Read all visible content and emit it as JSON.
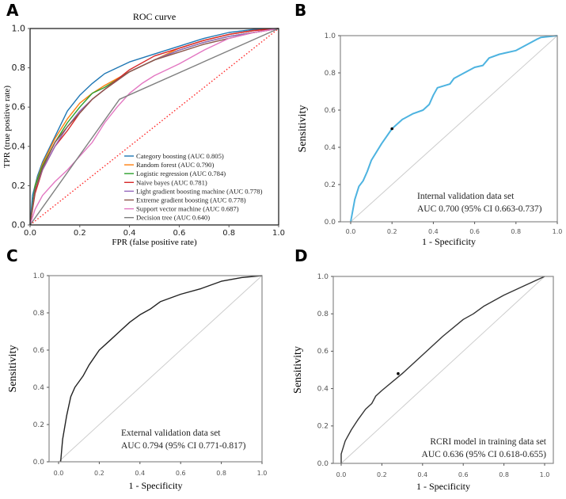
{
  "chart_data": [
    {
      "panel": "A",
      "type": "line",
      "title": "ROC curve",
      "xlabel": "FPR (false positive rate)",
      "ylabel": "TPR (true positive rate)",
      "xlim": [
        0,
        1
      ],
      "ylim": [
        0,
        1
      ],
      "xticks": [
        "0.0",
        "0.2",
        "0.4",
        "0.6",
        "0.8",
        "1.0"
      ],
      "yticks": [
        "0.0",
        "0.2",
        "0.4",
        "0.6",
        "0.8",
        "1.0"
      ],
      "grid": false,
      "legend_position": "bottom-right",
      "reference_line": {
        "style": "dotted",
        "color": "#ff2a2a"
      },
      "series": [
        {
          "name": "Category boosting (AUC 0.805)",
          "color": "#1f77b4",
          "points": [
            [
              0,
              0
            ],
            [
              0.01,
              0.15
            ],
            [
              0.03,
              0.25
            ],
            [
              0.05,
              0.32
            ],
            [
              0.1,
              0.45
            ],
            [
              0.15,
              0.58
            ],
            [
              0.2,
              0.66
            ],
            [
              0.25,
              0.72
            ],
            [
              0.3,
              0.77
            ],
            [
              0.35,
              0.8
            ],
            [
              0.4,
              0.83
            ],
            [
              0.5,
              0.87
            ],
            [
              0.6,
              0.91
            ],
            [
              0.7,
              0.95
            ],
            [
              0.8,
              0.98
            ],
            [
              0.9,
              0.995
            ],
            [
              1,
              1
            ]
          ]
        },
        {
          "name": "Random forest (AUC 0.790)",
          "color": "#ff7f0e",
          "points": [
            [
              0,
              0
            ],
            [
              0.02,
              0.2
            ],
            [
              0.05,
              0.31
            ],
            [
              0.1,
              0.44
            ],
            [
              0.15,
              0.54
            ],
            [
              0.2,
              0.62
            ],
            [
              0.25,
              0.67
            ],
            [
              0.3,
              0.71
            ],
            [
              0.4,
              0.78
            ],
            [
              0.5,
              0.84
            ],
            [
              0.6,
              0.9
            ],
            [
              0.7,
              0.94
            ],
            [
              0.8,
              0.97
            ],
            [
              0.9,
              0.99
            ],
            [
              1,
              1
            ]
          ]
        },
        {
          "name": "Logistic regression (AUC 0.784)",
          "color": "#2ca02c",
          "points": [
            [
              0,
              0
            ],
            [
              0.02,
              0.2
            ],
            [
              0.05,
              0.3
            ],
            [
              0.1,
              0.42
            ],
            [
              0.15,
              0.52
            ],
            [
              0.2,
              0.6
            ],
            [
              0.25,
              0.67
            ],
            [
              0.3,
              0.7
            ],
            [
              0.4,
              0.78
            ],
            [
              0.5,
              0.84
            ],
            [
              0.6,
              0.89
            ],
            [
              0.7,
              0.93
            ],
            [
              0.8,
              0.96
            ],
            [
              0.9,
              0.98
            ],
            [
              1,
              1
            ]
          ]
        },
        {
          "name": "Naive bayes (AUC 0.781)",
          "color": "#d62728",
          "points": [
            [
              0,
              0
            ],
            [
              0.02,
              0.16
            ],
            [
              0.05,
              0.28
            ],
            [
              0.1,
              0.4
            ],
            [
              0.15,
              0.48
            ],
            [
              0.2,
              0.57
            ],
            [
              0.25,
              0.64
            ],
            [
              0.3,
              0.69
            ],
            [
              0.4,
              0.79
            ],
            [
              0.5,
              0.86
            ],
            [
              0.6,
              0.9
            ],
            [
              0.7,
              0.94
            ],
            [
              0.8,
              0.97
            ],
            [
              0.9,
              0.99
            ],
            [
              1,
              1
            ]
          ]
        },
        {
          "name": "Light gradient boosting machine (AUC 0.778)",
          "color": "#9467bd",
          "points": [
            [
              0,
              0
            ],
            [
              0.02,
              0.18
            ],
            [
              0.05,
              0.28
            ],
            [
              0.1,
              0.4
            ],
            [
              0.15,
              0.5
            ],
            [
              0.2,
              0.58
            ],
            [
              0.25,
              0.64
            ],
            [
              0.3,
              0.69
            ],
            [
              0.4,
              0.78
            ],
            [
              0.5,
              0.84
            ],
            [
              0.6,
              0.89
            ],
            [
              0.7,
              0.93
            ],
            [
              0.8,
              0.96
            ],
            [
              0.9,
              0.98
            ],
            [
              1,
              1
            ]
          ]
        },
        {
          "name": "Extreme gradient boosting (AUC 0.778)",
          "color": "#8c564b",
          "points": [
            [
              0,
              0
            ],
            [
              0.02,
              0.18
            ],
            [
              0.05,
              0.29
            ],
            [
              0.1,
              0.42
            ],
            [
              0.15,
              0.5
            ],
            [
              0.2,
              0.57
            ],
            [
              0.25,
              0.64
            ],
            [
              0.3,
              0.69
            ],
            [
              0.4,
              0.78
            ],
            [
              0.5,
              0.84
            ],
            [
              0.6,
              0.88
            ],
            [
              0.7,
              0.92
            ],
            [
              0.8,
              0.95
            ],
            [
              0.9,
              0.98
            ],
            [
              1,
              1
            ]
          ]
        },
        {
          "name": "Support vector machine (AUC 0.687)",
          "color": "#e377c2",
          "points": [
            [
              0,
              0
            ],
            [
              0.02,
              0.08
            ],
            [
              0.05,
              0.15
            ],
            [
              0.1,
              0.22
            ],
            [
              0.15,
              0.28
            ],
            [
              0.2,
              0.35
            ],
            [
              0.25,
              0.42
            ],
            [
              0.3,
              0.52
            ],
            [
              0.35,
              0.6
            ],
            [
              0.4,
              0.67
            ],
            [
              0.45,
              0.72
            ],
            [
              0.5,
              0.76
            ],
            [
              0.6,
              0.82
            ],
            [
              0.7,
              0.89
            ],
            [
              0.8,
              0.95
            ],
            [
              0.9,
              0.98
            ],
            [
              1,
              1
            ]
          ]
        },
        {
          "name": "Decision tree (AUC 0.640)",
          "color": "#7f7f7f",
          "points": [
            [
              0,
              0
            ],
            [
              0.36,
              0.64
            ],
            [
              1,
              1
            ]
          ]
        }
      ]
    },
    {
      "panel": "B",
      "type": "line",
      "xlabel": "1 - Specificity",
      "ylabel": "Sensitivity",
      "xlim": [
        0,
        1
      ],
      "ylim": [
        0,
        1
      ],
      "xticks": [
        "0.0",
        "0.2",
        "0.4",
        "0.6",
        "0.8",
        "1.0"
      ],
      "yticks": [
        "0.0",
        "0.2",
        "0.4",
        "0.6",
        "0.8",
        "1.0"
      ],
      "annotation": [
        "Internal validation data set",
        "AUC 0.700 (95% CI 0.663-0.737)"
      ],
      "reference_line": {
        "style": "solid",
        "color": "#cccccc"
      },
      "series": [
        {
          "color": "#4db3e0",
          "cutoff_point": [
            0.2,
            0.5
          ],
          "points": [
            [
              0,
              0
            ],
            [
              0.02,
              0.12
            ],
            [
              0.04,
              0.19
            ],
            [
              0.06,
              0.22
            ],
            [
              0.08,
              0.27
            ],
            [
              0.1,
              0.33
            ],
            [
              0.15,
              0.42
            ],
            [
              0.2,
              0.5
            ],
            [
              0.25,
              0.55
            ],
            [
              0.3,
              0.58
            ],
            [
              0.35,
              0.6
            ],
            [
              0.38,
              0.63
            ],
            [
              0.4,
              0.68
            ],
            [
              0.42,
              0.72
            ],
            [
              0.48,
              0.74
            ],
            [
              0.5,
              0.77
            ],
            [
              0.55,
              0.8
            ],
            [
              0.6,
              0.83
            ],
            [
              0.64,
              0.84
            ],
            [
              0.67,
              0.88
            ],
            [
              0.72,
              0.9
            ],
            [
              0.8,
              0.92
            ],
            [
              0.85,
              0.95
            ],
            [
              0.9,
              0.98
            ],
            [
              0.92,
              0.99
            ],
            [
              1,
              1
            ]
          ]
        }
      ]
    },
    {
      "panel": "C",
      "type": "line",
      "xlabel": "1 - Specificity",
      "ylabel": "Sensitivity",
      "xlim": [
        0,
        1
      ],
      "ylim": [
        0,
        1
      ],
      "xticks": [
        "0.0",
        "0.2",
        "0.4",
        "0.6",
        "0.8",
        "1.0"
      ],
      "yticks": [
        "0.0",
        "0.2",
        "0.4",
        "0.6",
        "0.8",
        "1.0"
      ],
      "annotation": [
        "External validation data set",
        "AUC 0.794 (95% CI 0.771-0.817)"
      ],
      "reference_line": {
        "style": "solid",
        "color": "#cccccc"
      },
      "series": [
        {
          "color": "#222222",
          "points": [
            [
              0.01,
              0
            ],
            [
              0.02,
              0.12
            ],
            [
              0.04,
              0.25
            ],
            [
              0.06,
              0.35
            ],
            [
              0.08,
              0.4
            ],
            [
              0.12,
              0.46
            ],
            [
              0.15,
              0.52
            ],
            [
              0.2,
              0.6
            ],
            [
              0.25,
              0.65
            ],
            [
              0.3,
              0.7
            ],
            [
              0.35,
              0.75
            ],
            [
              0.4,
              0.79
            ],
            [
              0.45,
              0.82
            ],
            [
              0.5,
              0.86
            ],
            [
              0.6,
              0.9
            ],
            [
              0.7,
              0.93
            ],
            [
              0.8,
              0.97
            ],
            [
              0.9,
              0.99
            ],
            [
              1,
              1
            ]
          ]
        }
      ]
    },
    {
      "panel": "D",
      "type": "line",
      "xlabel": "1 - Specificity",
      "ylabel": "Sensitivity",
      "xlim": [
        0,
        1
      ],
      "ylim": [
        0,
        1
      ],
      "xticks": [
        "0.0",
        "0.2",
        "0.4",
        "0.6",
        "0.8",
        "1.0"
      ],
      "yticks": [
        "0.0",
        "0.2",
        "0.4",
        "0.6",
        "0.8",
        "1.0"
      ],
      "annotation": [
        "RCRI model in training data set",
        "AUC 0.636 (95% CI 0.618-0.655)"
      ],
      "reference_line": {
        "style": "solid",
        "color": "#cccccc"
      },
      "series": [
        {
          "color": "#333333",
          "cutoff_point": [
            0.28,
            0.48
          ],
          "points": [
            [
              0,
              0
            ],
            [
              0,
              0.05
            ],
            [
              0.02,
              0.12
            ],
            [
              0.05,
              0.18
            ],
            [
              0.08,
              0.23
            ],
            [
              0.12,
              0.29
            ],
            [
              0.15,
              0.32
            ],
            [
              0.17,
              0.36
            ],
            [
              0.2,
              0.39
            ],
            [
              0.3,
              0.48
            ],
            [
              0.4,
              0.58
            ],
            [
              0.5,
              0.68
            ],
            [
              0.6,
              0.77
            ],
            [
              0.65,
              0.8
            ],
            [
              0.7,
              0.84
            ],
            [
              0.8,
              0.9
            ],
            [
              0.9,
              0.95
            ],
            [
              1,
              1
            ]
          ]
        }
      ]
    }
  ]
}
